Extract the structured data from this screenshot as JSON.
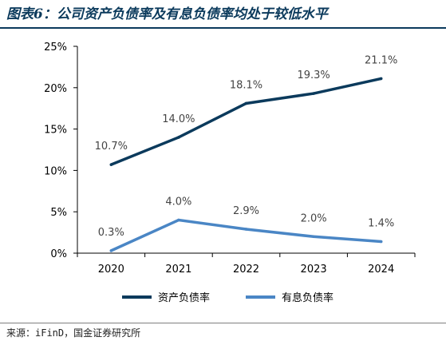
{
  "title": "图表6：公司资产负债率及有息负债率均处于较低水平",
  "source": "来源：iFinD，国金证券研究所",
  "chart_data": {
    "type": "line",
    "x": [
      "2020",
      "2021",
      "2022",
      "2023",
      "2024"
    ],
    "ylim": [
      0,
      25
    ],
    "yticks": [
      "0%",
      "5%",
      "10%",
      "15%",
      "20%",
      "25%"
    ],
    "grid": false,
    "legend_position": "bottom-center",
    "series": [
      {
        "name": "资产负债率",
        "values": [
          10.7,
          14.0,
          18.1,
          19.3,
          21.1
        ],
        "labels": [
          "10.7%",
          "14.0%",
          "18.1%",
          "19.3%",
          "21.1%"
        ],
        "color": "#0b3a5c"
      },
      {
        "name": "有息负债率",
        "values": [
          0.3,
          4.0,
          2.9,
          2.0,
          1.4
        ],
        "labels": [
          "0.3%",
          "4.0%",
          "2.9%",
          "2.0%",
          "1.4%"
        ],
        "color": "#4a86c5"
      }
    ]
  }
}
